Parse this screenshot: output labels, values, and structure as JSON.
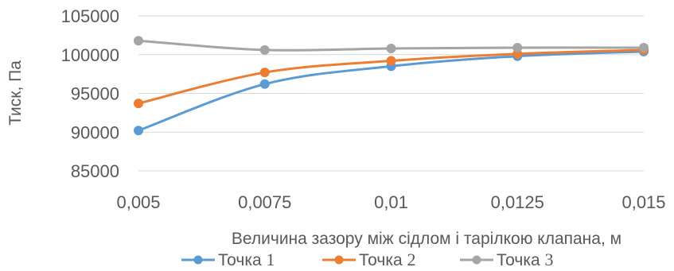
{
  "chart_data": {
    "type": "line",
    "title": "",
    "xlabel": "Величина зазору між сідлом і тарілкою клапана, м",
    "ylabel": "Тиск, Па",
    "x": [
      0.005,
      0.0075,
      0.01,
      0.0125,
      0.015
    ],
    "x_tick_labels": [
      "0,005",
      "0,0075",
      "0,01",
      "0,0125",
      "0,015"
    ],
    "ylim": [
      85000,
      105000
    ],
    "y_ticks": [
      85000,
      90000,
      95000,
      100000,
      105000
    ],
    "y_tick_labels": [
      "85000",
      "90000",
      "95000",
      "100000",
      "105000"
    ],
    "grid": "horizontal",
    "legend_position": "bottom",
    "series": [
      {
        "name": "Точка",
        "name_num": "1",
        "color": "#5b9bd5",
        "values": [
          90200,
          96200,
          98500,
          99800,
          100400
        ]
      },
      {
        "name": "Точка",
        "name_num": "2",
        "color": "#ed7d31",
        "values": [
          93700,
          97700,
          99200,
          100100,
          100600
        ]
      },
      {
        "name": "Точка",
        "name_num": "3",
        "color": "#a5a5a5",
        "values": [
          101800,
          100600,
          100800,
          100900,
          100900
        ]
      }
    ]
  }
}
